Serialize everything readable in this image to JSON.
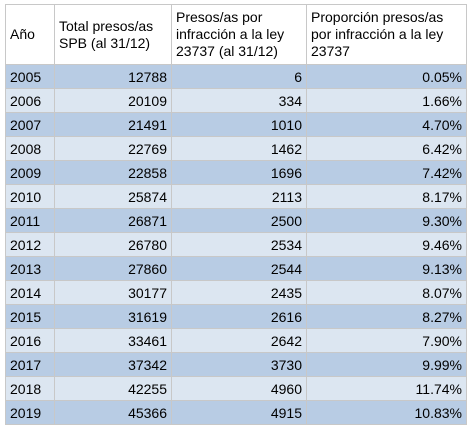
{
  "table": {
    "headers": [
      "Año",
      "Total presos/as SPB (al 31/12)",
      "Presos/as por infracción a la ley 23737 (al 31/12)",
      "Proporción presos/as por infracción a la ley 23737"
    ],
    "rows": [
      [
        "2005",
        "12788",
        "6",
        "0.05%"
      ],
      [
        "2006",
        "20109",
        "334",
        "1.66%"
      ],
      [
        "2007",
        "21491",
        "1010",
        "4.70%"
      ],
      [
        "2008",
        "22769",
        "1462",
        "6.42%"
      ],
      [
        "2009",
        "22858",
        "1696",
        "7.42%"
      ],
      [
        "2010",
        "25874",
        "2113",
        "8.17%"
      ],
      [
        "2011",
        "26871",
        "2500",
        "9.30%"
      ],
      [
        "2012",
        "26780",
        "2534",
        "9.46%"
      ],
      [
        "2013",
        "27860",
        "2544",
        "9.13%"
      ],
      [
        "2014",
        "30177",
        "2435",
        "8.07%"
      ],
      [
        "2015",
        "31619",
        "2616",
        "8.27%"
      ],
      [
        "2016",
        "33461",
        "2642",
        "7.90%"
      ],
      [
        "2017",
        "37342",
        "3730",
        "9.99%"
      ],
      [
        "2018",
        "42255",
        "4960",
        "11.74%"
      ],
      [
        "2019",
        "45366",
        "4915",
        "10.83%"
      ]
    ],
    "colors": {
      "row_dark": "#b8cce4",
      "row_light": "#dce6f1",
      "border": "#c8c8c8"
    }
  }
}
